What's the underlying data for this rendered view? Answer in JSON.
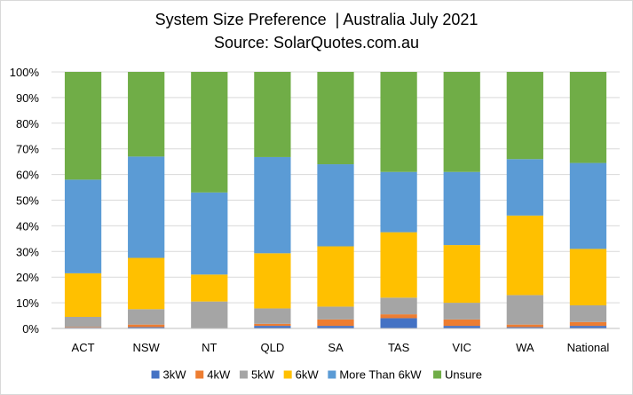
{
  "chart_data": {
    "type": "bar",
    "stacked": true,
    "percent_stacked": true,
    "title": "System Size Preference  | Australia July 2021",
    "subtitle": "Source: SolarQuotes.com.au",
    "categories": [
      "ACT",
      "NSW",
      "NT",
      "QLD",
      "SA",
      "TAS",
      "VIC",
      "WA",
      "National"
    ],
    "y_ticks": [
      "0%",
      "10%",
      "20%",
      "30%",
      "40%",
      "50%",
      "60%",
      "70%",
      "80%",
      "90%",
      "100%"
    ],
    "ylim": [
      0,
      100
    ],
    "grid": true,
    "legend_position": "bottom",
    "series": [
      {
        "name": "3kW",
        "color": "#4472C4",
        "values": [
          0.3,
          0.5,
          0,
          1.0,
          1.0,
          4.0,
          1.0,
          0.5,
          1.0
        ]
      },
      {
        "name": "4kW",
        "color": "#ED7D31",
        "values": [
          0.2,
          1.0,
          0,
          0.8,
          2.5,
          1.5,
          2.5,
          1.0,
          1.5
        ]
      },
      {
        "name": "5kW",
        "color": "#A5A5A5",
        "values": [
          4.0,
          6.0,
          10.5,
          6.0,
          5.0,
          6.5,
          6.5,
          11.5,
          6.5
        ]
      },
      {
        "name": "6kW",
        "color": "#FFC000",
        "values": [
          17.0,
          20.0,
          10.5,
          21.5,
          23.5,
          25.5,
          22.5,
          31.0,
          22.0
        ]
      },
      {
        "name": "More Than 6kW",
        "color": "#5B9BD5",
        "values": [
          36.5,
          39.5,
          32.0,
          37.5,
          32.0,
          23.5,
          28.5,
          22.0,
          33.5
        ]
      },
      {
        "name": "Unsure",
        "color": "#70AD47",
        "values": [
          42.0,
          33.0,
          47.0,
          33.2,
          36.0,
          39.0,
          39.0,
          34.0,
          35.5
        ]
      }
    ]
  }
}
